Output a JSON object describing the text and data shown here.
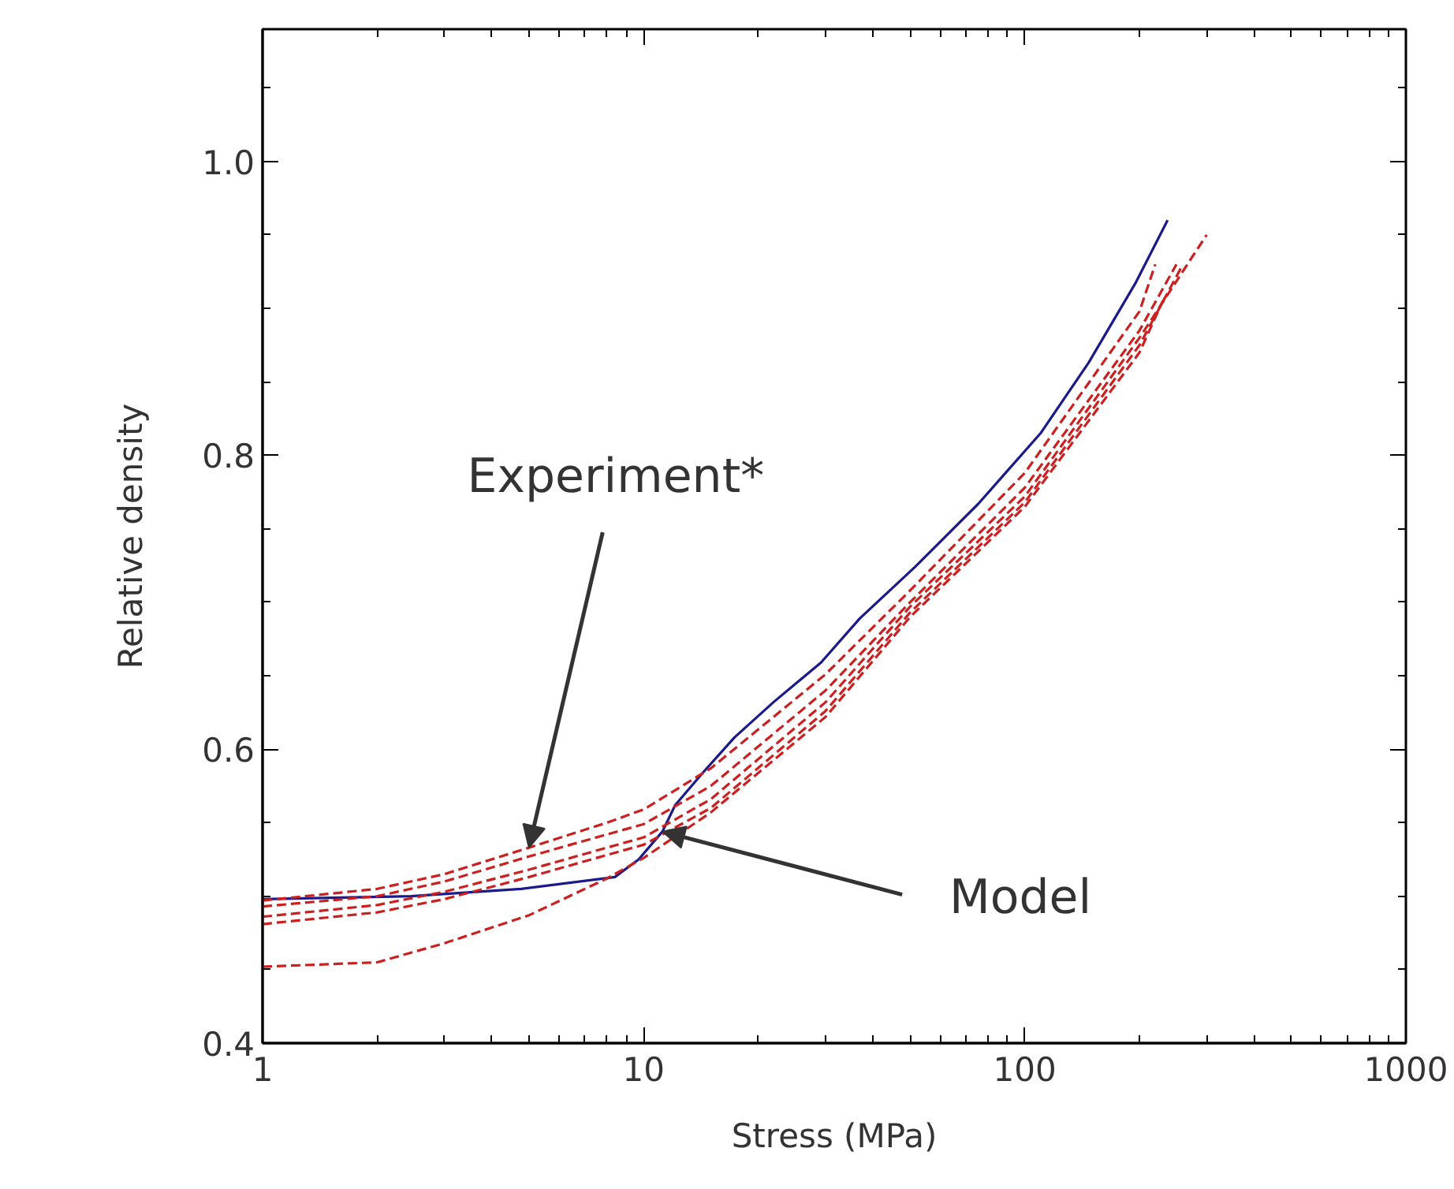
{
  "chart_data": {
    "type": "line",
    "xlabel": "Stress (MPa)",
    "ylabel": "Relative density",
    "log": "x",
    "xlim": [
      1,
      1000
    ],
    "xticks": [
      1,
      10,
      100,
      1000
    ],
    "ylim": [
      0.4,
      1.09
    ],
    "yticks": [
      0.4,
      0.6,
      0.8,
      {
        "value": 1.0,
        "label": "1.0"
      }
    ],
    "grid": false,
    "series": [
      {
        "color": "#1a1a8c",
        "line_style": "solid",
        "x": [
          1,
          2.45,
          4.77,
          8.4,
          9.7,
          11.2,
          12.1,
          14.3,
          17.3,
          21.9,
          29.2,
          36.9,
          51.5,
          75.5,
          110,
          147,
          195,
          237
        ],
        "values": [
          0.498,
          0.5,
          0.505,
          0.513,
          0.525,
          0.544,
          0.562,
          0.584,
          0.608,
          0.632,
          0.659,
          0.689,
          0.724,
          0.767,
          0.815,
          0.863,
          0.917,
          0.96
        ]
      },
      {
        "color": "#cc2020",
        "line_style": "dashed",
        "x": [
          1,
          2,
          3,
          5,
          8,
          10,
          15,
          30,
          50,
          100,
          200,
          220
        ],
        "values": [
          0.497,
          0.505,
          0.515,
          0.533,
          0.55,
          0.559,
          0.587,
          0.651,
          0.708,
          0.788,
          0.898,
          0.93
        ]
      },
      {
        "color": "#cc2020",
        "line_style": "dashed",
        "x": [
          1,
          2,
          3,
          5,
          8,
          10,
          15,
          30,
          50,
          100,
          200,
          250
        ],
        "values": [
          0.493,
          0.5,
          0.51,
          0.527,
          0.542,
          0.549,
          0.575,
          0.64,
          0.7,
          0.778,
          0.885,
          0.93
        ]
      },
      {
        "color": "#cc2020",
        "line_style": "dashed",
        "x": [
          1,
          2,
          3,
          5,
          8,
          10,
          15,
          30,
          50,
          100,
          200,
          300
        ],
        "values": [
          0.486,
          0.494,
          0.503,
          0.518,
          0.533,
          0.54,
          0.566,
          0.632,
          0.697,
          0.772,
          0.88,
          0.95
        ]
      },
      {
        "color": "#cc2020",
        "line_style": "dashed",
        "x": [
          1,
          2,
          3,
          5,
          8,
          10,
          15,
          30,
          50,
          100,
          200,
          260
        ],
        "values": [
          0.481,
          0.489,
          0.498,
          0.513,
          0.528,
          0.535,
          0.56,
          0.626,
          0.693,
          0.768,
          0.875,
          0.93
        ]
      },
      {
        "color": "#cc2020",
        "line_style": "dashed",
        "x": [
          1,
          2,
          3,
          5,
          8,
          10,
          15,
          30,
          50,
          100,
          200,
          230
        ],
        "values": [
          0.452,
          0.455,
          0.468,
          0.487,
          0.512,
          0.526,
          0.557,
          0.622,
          0.69,
          0.765,
          0.87,
          0.905
        ]
      }
    ],
    "annotations": [
      {
        "text": "Experiment*",
        "x": 5,
        "y": 0.533
      },
      {
        "text": "Model",
        "x": 11.2,
        "y": 0.544
      }
    ]
  }
}
